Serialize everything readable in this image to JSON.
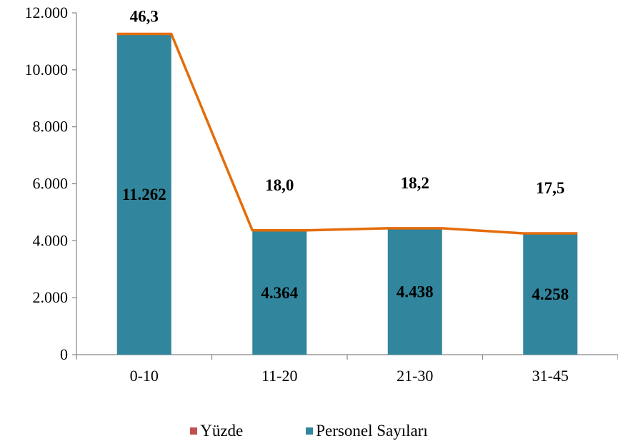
{
  "chart_data": {
    "type": "bar",
    "categories": [
      "0-10",
      "11-20",
      "21-30",
      "31-45"
    ],
    "series": [
      {
        "name": "Personel Sayıları",
        "values": [
          11262,
          4364,
          4438,
          4258
        ],
        "labels": [
          "11.262",
          "4.364",
          "4.438",
          "4.258"
        ],
        "color": "#31859c"
      },
      {
        "name": "Yüzde",
        "values": [
          46.3,
          18.0,
          18.2,
          17.5
        ],
        "labels": [
          "46,3",
          "18,0",
          "18,2",
          "17,5"
        ],
        "color": "#c0504d"
      }
    ],
    "line_color": "#e46c0a",
    "ylim": [
      0,
      12000
    ],
    "yticks": [
      0,
      2000,
      4000,
      6000,
      8000,
      10000,
      12000
    ],
    "ytick_labels": [
      "0",
      "2.000",
      "4.000",
      "6.000",
      "8.000",
      "10.000",
      "12.000"
    ],
    "grid": false,
    "legend_position": "bottom",
    "title": "",
    "xlabel": "",
    "ylabel": ""
  }
}
